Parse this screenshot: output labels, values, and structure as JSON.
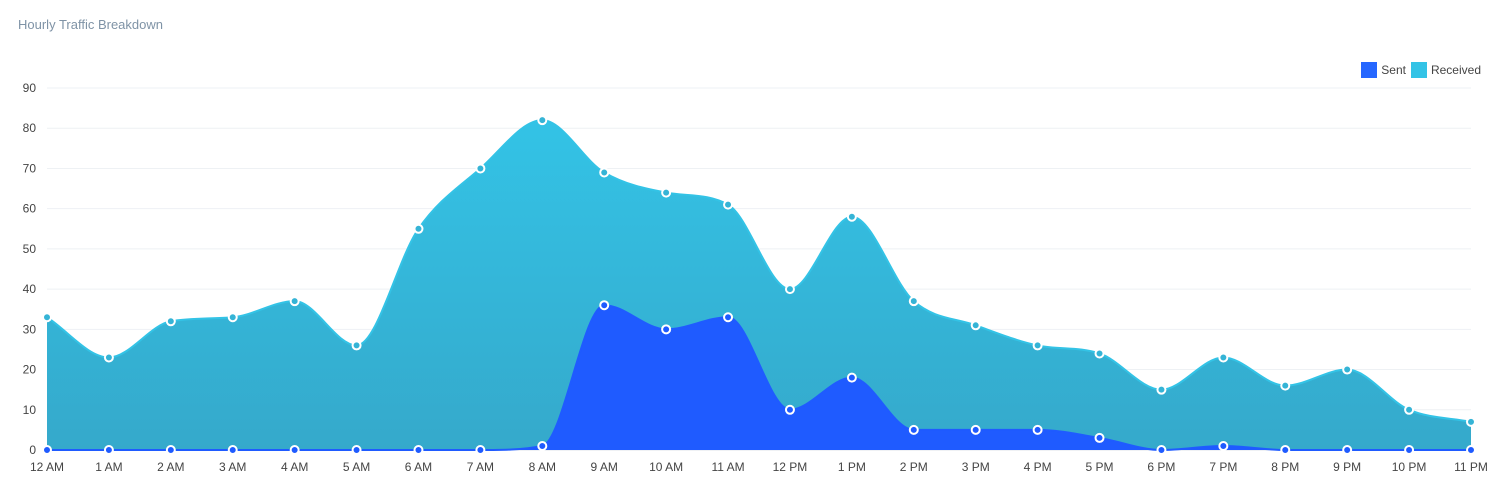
{
  "title": "Hourly Traffic Breakdown",
  "colors": {
    "sent": "#1f5bff",
    "received_top": "#33c3e6",
    "received_bottom": "#35a9cb",
    "grid": "#eef1f4",
    "title": "#7f93a6"
  },
  "chart_data": {
    "type": "area",
    "title": "Hourly Traffic Breakdown",
    "stacked": false,
    "xlabel": "",
    "ylabel": "",
    "ylim": [
      0,
      90
    ],
    "y_ticks": [
      0,
      10,
      20,
      30,
      40,
      50,
      60,
      70,
      80,
      90
    ],
    "grid": true,
    "legend_position": "top-right",
    "categories": [
      "12 AM",
      "1 AM",
      "2 AM",
      "3 AM",
      "4 AM",
      "5 AM",
      "6 AM",
      "7 AM",
      "8 AM",
      "9 AM",
      "10 AM",
      "11 AM",
      "12 PM",
      "1 PM",
      "2 PM",
      "3 PM",
      "4 PM",
      "5 PM",
      "6 PM",
      "7 PM",
      "8 PM",
      "9 PM",
      "10 PM",
      "11 PM"
    ],
    "series": [
      {
        "name": "Sent",
        "color": "#1f5bff",
        "values": [
          0,
          0,
          0,
          0,
          0,
          0,
          0,
          0,
          1,
          36,
          30,
          33,
          10,
          18,
          5,
          5,
          5,
          3,
          0,
          1,
          0,
          0,
          0,
          0
        ]
      },
      {
        "name": "Received",
        "color": "#33c3e6",
        "values": [
          33,
          23,
          32,
          33,
          37,
          26,
          55,
          70,
          82,
          69,
          64,
          61,
          40,
          58,
          37,
          31,
          26,
          24,
          15,
          23,
          16,
          20,
          10,
          7
        ]
      }
    ]
  }
}
